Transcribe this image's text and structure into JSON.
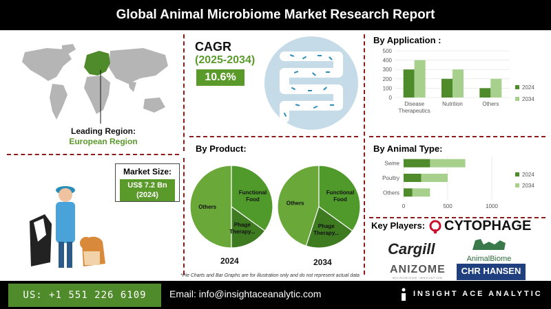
{
  "header": {
    "title": "Global Animal Microbiome Market Research Report"
  },
  "leading_region": {
    "label": "Leading Region:",
    "value": "European Region"
  },
  "cagr": {
    "title": "CAGR",
    "years": "(2025-2034)",
    "value": "10.6%"
  },
  "market_size": {
    "label": "Market Size:",
    "value_line1": "US$ 7.2 Bn",
    "value_line2": "(2024)"
  },
  "note": "*Pie Charts and Bar Graphs are for illustration only and do not represent actual data",
  "key_players": {
    "title": "Key Players:",
    "logos": [
      "CYTOPHAGE",
      "Cargill",
      "AnimalBiome",
      "ANIZOME",
      "CHR HANSEN"
    ],
    "anizome_sub": "MICROBIOME INNOVATION"
  },
  "footer": {
    "phone": "US: +1 551 226 6109",
    "email": "Email: info@insightaceanalytic.com",
    "brand": "INSIGHT ACE ANALYTIC"
  },
  "colors": {
    "dark_green": "#4f8a2b",
    "mid_green": "#6aa83a",
    "light_green": "#a6d08c",
    "accent_red": "#8b1a1a"
  },
  "chart_data": [
    {
      "type": "bar",
      "title": "By Application :",
      "categories": [
        "Disease Therapeutics",
        "Nutrition",
        "Others"
      ],
      "category_lines": [
        [
          "Disease",
          "Therapeutics"
        ],
        [
          "Nutrition"
        ],
        [
          "Others"
        ]
      ],
      "series": [
        {
          "name": "2024",
          "values": [
            300,
            200,
            100
          ],
          "color": "#4f8a2b"
        },
        {
          "name": "2034",
          "values": [
            400,
            300,
            200
          ],
          "color": "#a6d08c"
        }
      ],
      "ylim": [
        0,
        500
      ],
      "yticks": [
        0,
        100,
        200,
        300,
        400,
        500
      ],
      "legend": "right"
    },
    {
      "type": "bar",
      "orientation": "horizontal",
      "stacked": true,
      "title": "By Animal Type:",
      "categories": [
        "Swine",
        "Poultry",
        "Others"
      ],
      "series": [
        {
          "name": "2024",
          "values": [
            300,
            200,
            100
          ],
          "color": "#4f8a2b"
        },
        {
          "name": "2034",
          "values": [
            400,
            300,
            200
          ],
          "color": "#a6d08c"
        }
      ],
      "xlim": [
        0,
        1000
      ],
      "xticks": [
        0,
        500,
        1000
      ],
      "legend": "right"
    },
    {
      "type": "pie",
      "title": "By Product:",
      "year": "2024",
      "slices": [
        {
          "label": "Others",
          "value": 50,
          "color": "#6aa83a"
        },
        {
          "label": "Functional Food",
          "value": 35,
          "color": "#4f9a2b"
        },
        {
          "label": "Phage Therapy...",
          "value": 15,
          "color": "#3d7a20"
        }
      ]
    },
    {
      "type": "pie",
      "year": "2034",
      "slices": [
        {
          "label": "Others",
          "value": 45,
          "color": "#6aa83a"
        },
        {
          "label": "Functional Food",
          "value": 35,
          "color": "#4f9a2b"
        },
        {
          "label": "Phage Therapy...",
          "value": 20,
          "color": "#3d7a20"
        }
      ]
    }
  ]
}
